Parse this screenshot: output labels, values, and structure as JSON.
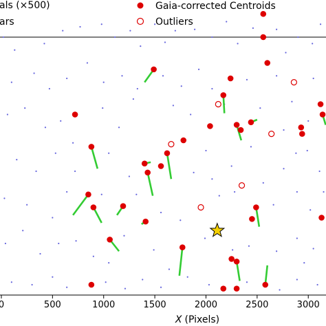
{
  "chart_data": {
    "type": "scatter",
    "xlabel": "X (Pixels)",
    "xlabel_var": "X",
    "xlabel_unit": "(Pixels)",
    "xlim": [
      -20,
      3180
    ],
    "ylim": [
      0,
      200
    ],
    "x_ticks": [
      0,
      500,
      1000,
      1500,
      2000,
      2500,
      3000
    ],
    "x_tick_labels": [
      "0",
      "500",
      "1000",
      "1500",
      "2000",
      "2500",
      "3000"
    ],
    "legend": [
      {
        "label": "als (×500)",
        "marker": "line",
        "color": "#33cc33"
      },
      {
        "label": "ars",
        "marker": "dot",
        "color": "#6666dd"
      },
      {
        "label": "Gaia-corrected Centroids",
        "marker": "filled-circle",
        "color": "#dd0000"
      },
      {
        "label": "Outliers",
        "marker": "open-circle",
        "color": "#dd0000"
      }
    ],
    "colors": {
      "centroid": "#dd0000",
      "residual": "#33cc33",
      "star": "#6666dd",
      "target": "#f5d000"
    },
    "centroids": [
      {
        "x": 1490,
        "y": 175,
        "dx": -90,
        "dy": -10
      },
      {
        "x": 720,
        "y": 140,
        "dx": 0,
        "dy": 0
      },
      {
        "x": 880,
        "y": 115,
        "dx": 60,
        "dy": -17
      },
      {
        "x": 1620,
        "y": 110,
        "dx": 40,
        "dy": -20
      },
      {
        "x": 1400,
        "y": 102,
        "dx": 60,
        "dy": 1
      },
      {
        "x": 1430,
        "y": 95,
        "dx": 50,
        "dy": -18
      },
      {
        "x": 1560,
        "y": 100,
        "dx": 0,
        "dy": 0
      },
      {
        "x": 850,
        "y": 78,
        "dx": -150,
        "dy": -16
      },
      {
        "x": 900,
        "y": 68,
        "dx": 80,
        "dy": -12
      },
      {
        "x": 1190,
        "y": 69,
        "dx": -60,
        "dy": -7
      },
      {
        "x": 1410,
        "y": 57,
        "dx": -40,
        "dy": -2
      },
      {
        "x": 1060,
        "y": 43,
        "dx": 90,
        "dy": -9
      },
      {
        "x": 1770,
        "y": 37,
        "dx": -30,
        "dy": -22
      },
      {
        "x": 880,
        "y": 8,
        "dx": 0,
        "dy": 0
      },
      {
        "x": 1780,
        "y": 120,
        "dx": 0,
        "dy": 0
      },
      {
        "x": 2170,
        "y": 155,
        "dx": 10,
        "dy": -14
      },
      {
        "x": 2240,
        "y": 168,
        "dx": 0,
        "dy": 0
      },
      {
        "x": 2340,
        "y": 128,
        "dx": 0,
        "dy": 0
      },
      {
        "x": 2300,
        "y": 132,
        "dx": 45,
        "dy": -12
      },
      {
        "x": 2440,
        "y": 134,
        "dx": 60,
        "dy": 2
      },
      {
        "x": 2040,
        "y": 131,
        "dx": 0,
        "dy": 0
      },
      {
        "x": 2560,
        "y": 218,
        "dx": 0,
        "dy": 0
      },
      {
        "x": 2560,
        "y": 200,
        "dx": 0,
        "dy": 0
      },
      {
        "x": 2600,
        "y": 180,
        "dx": 0,
        "dy": 0
      },
      {
        "x": 2930,
        "y": 130,
        "dx": 0,
        "dy": 0
      },
      {
        "x": 3120,
        "y": 148,
        "dx": 0,
        "dy": 0
      },
      {
        "x": 3140,
        "y": 140,
        "dx": 30,
        "dy": -8
      },
      {
        "x": 2940,
        "y": 125,
        "dx": 0,
        "dy": 0
      },
      {
        "x": 2490,
        "y": 68,
        "dx": 30,
        "dy": -15
      },
      {
        "x": 2450,
        "y": 59,
        "dx": 0,
        "dy": 0
      },
      {
        "x": 2250,
        "y": 28,
        "dx": 0,
        "dy": 0
      },
      {
        "x": 2300,
        "y": 26,
        "dx": 30,
        "dy": -15
      },
      {
        "x": 2580,
        "y": 8,
        "dx": 20,
        "dy": 15
      },
      {
        "x": 2170,
        "y": 5,
        "dx": 0,
        "dy": 0
      },
      {
        "x": 2300,
        "y": 5,
        "dx": 0,
        "dy": 0
      },
      {
        "x": 3130,
        "y": 60,
        "dx": 0,
        "dy": 0
      }
    ],
    "outliers": [
      {
        "x": 1950,
        "y": 68
      },
      {
        "x": 1660,
        "y": 117
      },
      {
        "x": 2640,
        "y": 125
      },
      {
        "x": 2350,
        "y": 85
      },
      {
        "x": 2860,
        "y": 165
      },
      {
        "x": 2120,
        "y": 148
      }
    ],
    "target": {
      "x": 2110,
      "y": 50
    },
    "stars": [
      [
        20,
        200
      ],
      [
        130,
        190
      ],
      [
        420,
        195
      ],
      [
        600,
        205
      ],
      [
        770,
        208
      ],
      [
        980,
        210
      ],
      [
        1110,
        200
      ],
      [
        1260,
        205
      ],
      [
        1360,
        193
      ],
      [
        1500,
        210
      ],
      [
        1600,
        196
      ],
      [
        1700,
        205
      ],
      [
        1890,
        206
      ],
      [
        2060,
        200
      ],
      [
        2200,
        212
      ],
      [
        2310,
        195
      ],
      [
        2460,
        207
      ],
      [
        2690,
        206
      ],
      [
        2780,
        188
      ],
      [
        2900,
        200
      ],
      [
        3040,
        195
      ],
      [
        3120,
        210
      ],
      [
        100,
        165
      ],
      [
        320,
        172
      ],
      [
        470,
        160
      ],
      [
        640,
        168
      ],
      [
        840,
        180
      ],
      [
        1000,
        165
      ],
      [
        1180,
        170
      ],
      [
        1330,
        160
      ],
      [
        1580,
        170
      ],
      [
        1760,
        162
      ],
      [
        1930,
        175
      ],
      [
        2060,
        160
      ],
      [
        2400,
        167
      ],
      [
        2690,
        170
      ],
      [
        2840,
        150
      ],
      [
        3050,
        168
      ],
      [
        60,
        140
      ],
      [
        230,
        145
      ],
      [
        430,
        130
      ],
      [
        580,
        135
      ],
      [
        700,
        118
      ],
      [
        990,
        145
      ],
      [
        1150,
        130
      ],
      [
        1290,
        152
      ],
      [
        1680,
        147
      ],
      [
        1850,
        140
      ],
      [
        2000,
        112
      ],
      [
        2180,
        148
      ],
      [
        2530,
        145
      ],
      [
        2760,
        128
      ],
      [
        2880,
        110
      ],
      [
        3000,
        135
      ],
      [
        150,
        105
      ],
      [
        340,
        96
      ],
      [
        530,
        110
      ],
      [
        720,
        96
      ],
      [
        1050,
        110
      ],
      [
        1250,
        92
      ],
      [
        1470,
        80
      ],
      [
        1880,
        95
      ],
      [
        2060,
        90
      ],
      [
        2250,
        100
      ],
      [
        2440,
        115
      ],
      [
        2760,
        98
      ],
      [
        2990,
        112
      ],
      [
        3110,
        96
      ],
      [
        30,
        75
      ],
      [
        250,
        70
      ],
      [
        500,
        60
      ],
      [
        640,
        80
      ],
      [
        980,
        78
      ],
      [
        1320,
        78
      ],
      [
        1560,
        64
      ],
      [
        1750,
        58
      ],
      [
        2130,
        77
      ],
      [
        2280,
        80
      ],
      [
        2560,
        87
      ],
      [
        2660,
        70
      ],
      [
        2890,
        80
      ],
      [
        3020,
        66
      ],
      [
        3150,
        80
      ],
      [
        40,
        40
      ],
      [
        210,
        50
      ],
      [
        380,
        32
      ],
      [
        560,
        40
      ],
      [
        730,
        42
      ],
      [
        900,
        30
      ],
      [
        1200,
        46
      ],
      [
        1490,
        35
      ],
      [
        1640,
        20
      ],
      [
        1990,
        44
      ],
      [
        2260,
        35
      ],
      [
        2420,
        38
      ],
      [
        2690,
        34
      ],
      [
        2890,
        44
      ],
      [
        3050,
        36
      ],
      [
        100,
        10
      ],
      [
        300,
        8
      ],
      [
        500,
        14
      ],
      [
        640,
        6
      ],
      [
        1020,
        10
      ],
      [
        1210,
        5
      ],
      [
        1380,
        12
      ],
      [
        1560,
        6
      ],
      [
        1820,
        14
      ],
      [
        2030,
        8
      ],
      [
        2400,
        10
      ],
      [
        2720,
        4
      ],
      [
        2890,
        12
      ],
      [
        3090,
        8
      ],
      [
        2960,
        25
      ],
      [
        1050,
        25
      ]
    ]
  }
}
